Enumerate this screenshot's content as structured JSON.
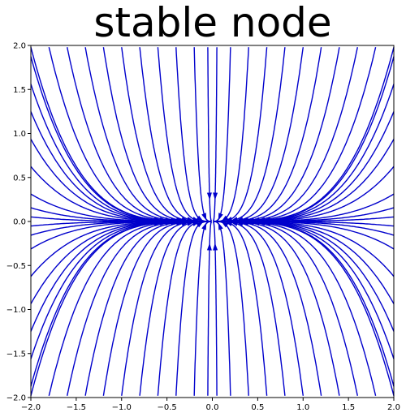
{
  "chart_data": {
    "type": "streamplot",
    "title": "stable node",
    "xlabel": "",
    "ylabel": "",
    "xlim": [
      -2.0,
      2.0
    ],
    "ylim": [
      -2.0,
      2.0
    ],
    "xticks": [
      "−2.0",
      "−1.5",
      "−1.0",
      "−0.5",
      "0.0",
      "0.5",
      "1.0",
      "1.5",
      "2.0"
    ],
    "yticks": [
      "−2.0",
      "−1.5",
      "−1.0",
      "−0.5",
      "0.0",
      "0.5",
      "1.0",
      "1.5",
      "2.0"
    ],
    "xtick_values": [
      -2.0,
      -1.5,
      -1.0,
      -0.5,
      0.0,
      0.5,
      1.0,
      1.5,
      2.0
    ],
    "ytick_values": [
      -2.0,
      -1.5,
      -1.0,
      -0.5,
      0.0,
      0.5,
      1.0,
      1.5,
      2.0
    ],
    "system": {
      "dx": "-0.5 * x",
      "dy": "-2 * y"
    },
    "line_color": "#0000cc",
    "grid": false,
    "streamline_seeds_x": [
      -2.0,
      -1.8,
      -1.6,
      -1.4,
      -1.2,
      -1.0,
      -0.8,
      -0.6,
      -0.4,
      -0.2,
      -0.05,
      0.05,
      0.2,
      0.4,
      0.6,
      0.8,
      1.0,
      1.2,
      1.4,
      1.6,
      1.8,
      2.0
    ],
    "streamline_seeds_y": [
      1.8,
      1.5,
      1.2,
      0.9,
      0.6,
      0.3,
      0.15,
      0.05,
      -0.05,
      -0.15,
      -0.3,
      -0.6,
      -0.9,
      -1.2,
      -1.5,
      -1.8
    ]
  }
}
